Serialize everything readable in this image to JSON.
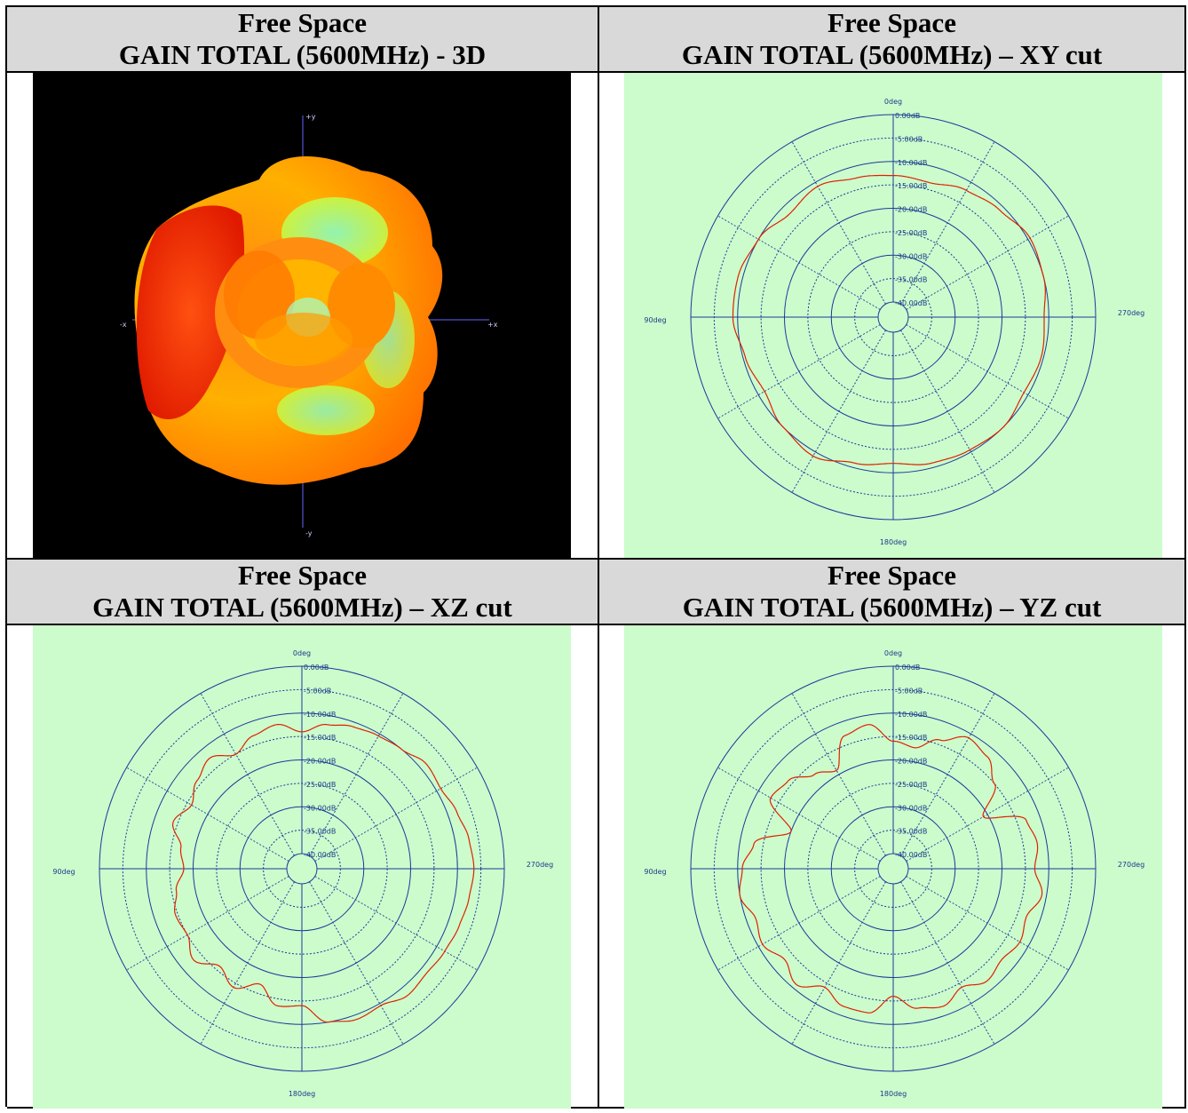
{
  "headers": [
    {
      "line1": "Free Space",
      "line2": "GAIN TOTAL (5600MHz) - 3D"
    },
    {
      "line1": "Free Space",
      "line2": "GAIN TOTAL (5600MHz) – XY cut"
    },
    {
      "line1": "Free Space",
      "line2": "GAIN TOTAL (5600MHz) – XZ cut"
    },
    {
      "line1": "Free Space",
      "line2": "GAIN TOTAL (5600MHz) – YZ cut"
    }
  ],
  "axis3d": {
    "plus_y": "+y",
    "minus_y": "-y",
    "plus_x": "+x",
    "minus_x": "-x"
  },
  "colors": {
    "polar_bg": "#ccfccc",
    "trace": "#e02000",
    "grid": "#1a3a9a",
    "header_bg": "#d9d9d9"
  },
  "chart_data": [
    {
      "type": "line",
      "chart": "polar",
      "name": "XY cut",
      "angle_labels": [
        "0deg",
        "90deg",
        "180deg",
        "270deg"
      ],
      "radial_labels": [
        "0.00dB",
        "-5.00dB",
        "-10.00dB",
        "-15.00dB",
        "-20.00dB",
        "-25.00dB",
        "-30.00dB",
        "-35.00dB",
        "-40.00dB"
      ],
      "rlim": [
        -40,
        0
      ],
      "angle_direction": "counterclockwise from top",
      "x": [
        0,
        15,
        30,
        45,
        60,
        75,
        90,
        105,
        120,
        135,
        150,
        165,
        180,
        195,
        210,
        225,
        240,
        255,
        270,
        285,
        300,
        315,
        330,
        345
      ],
      "values": [
        -13,
        -12.5,
        -11,
        -12,
        -10,
        -9,
        -9,
        -10.5,
        -11.5,
        -10,
        -9,
        -11,
        -12,
        -11,
        -10.5,
        -10,
        -11,
        -10.5,
        -11,
        -10,
        -9.5,
        -11,
        -12,
        -13.5
      ]
    },
    {
      "type": "line",
      "chart": "polar",
      "name": "XZ cut",
      "angle_labels": [
        "0deg",
        "90deg",
        "180deg",
        "270deg"
      ],
      "radial_labels": [
        "0.00dB",
        "-5.00dB",
        "-10.00dB",
        "-15.00dB",
        "-20.00dB",
        "-25.00dB",
        "-30.00dB",
        "-35.00dB",
        "-40.00dB"
      ],
      "rlim": [
        -40,
        0
      ],
      "angle_direction": "counterclockwise from top",
      "x": [
        0,
        10,
        20,
        30,
        40,
        50,
        60,
        70,
        80,
        90,
        100,
        110,
        120,
        130,
        140,
        150,
        160,
        170,
        180,
        190,
        200,
        210,
        220,
        230,
        240,
        250,
        260,
        270,
        280,
        290,
        300,
        310,
        320,
        330,
        340,
        350
      ],
      "values": [
        -14,
        -12,
        -13,
        -15,
        -12.5,
        -14,
        -16,
        -14,
        -17,
        -18,
        -16,
        -14.5,
        -15,
        -13,
        -16,
        -14,
        -17,
        -13.5,
        -14,
        -10,
        -9,
        -9.5,
        -8,
        -8.5,
        -8,
        -7.5,
        -7,
        -6.5,
        -7,
        -8,
        -9,
        -8.5,
        -10,
        -10.5,
        -11,
        -12
      ]
    },
    {
      "type": "line",
      "chart": "polar",
      "name": "YZ cut",
      "angle_labels": [
        "0deg",
        "90deg",
        "180deg",
        "270deg"
      ],
      "radial_labels": [
        "0.00dB",
        "-5.00dB",
        "-10.00dB",
        "-15.00dB",
        "-20.00dB",
        "-25.00dB",
        "-30.00dB",
        "-35.00dB",
        "-40.00dB"
      ],
      "rlim": [
        -40,
        0
      ],
      "angle_direction": "counterclockwise from top",
      "x": [
        0,
        10,
        20,
        30,
        40,
        50,
        60,
        70,
        80,
        90,
        100,
        110,
        120,
        130,
        140,
        150,
        160,
        170,
        180,
        190,
        200,
        210,
        220,
        230,
        240,
        250,
        260,
        270,
        280,
        290,
        300,
        310,
        320,
        330,
        340,
        350
      ],
      "values": [
        -16,
        -12,
        -13,
        -19,
        -17,
        -14,
        -13,
        -20,
        -13,
        -11,
        -10,
        -12,
        -11,
        -13,
        -11,
        -14,
        -12,
        -12,
        -16,
        -13,
        -12,
        -14,
        -12,
        -13,
        -12,
        -13,
        -11,
        -13,
        -12,
        -13,
        -21,
        -15,
        -12,
        -11,
        -14,
        -17
      ]
    }
  ]
}
